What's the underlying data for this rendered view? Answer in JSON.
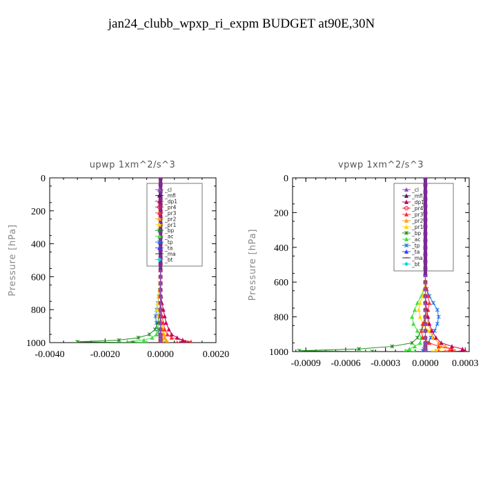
{
  "page_title": "jan24_clubb_wpxp_ri_expm  BUDGET at90E,30N",
  "chart_data": [
    {
      "type": "line",
      "title": "upwp   1xm^2/s^3",
      "ylabel": "Pressure  [hPa]",
      "xlabel": "",
      "xlim": [
        -0.004,
        0.002
      ],
      "ylim": [
        1000,
        0
      ],
      "x_ticks": [
        -0.004,
        -0.002,
        0.0,
        0.002
      ],
      "x_tick_labels": [
        "-0.0040",
        "-0.0020",
        "0.0000",
        "0.0020"
      ],
      "y_ticks": [
        0,
        200,
        400,
        600,
        800,
        1000
      ],
      "y_tick_labels": [
        "0",
        "200",
        "400",
        "600",
        "800",
        "1000"
      ],
      "grid": false,
      "legend_position": "top-right",
      "pressure_levels": [
        0,
        40,
        80,
        120,
        160,
        200,
        240,
        280,
        320,
        360,
        400,
        440,
        480,
        520,
        560,
        600,
        640,
        680,
        720,
        760,
        800,
        840,
        880,
        920,
        950,
        970,
        985,
        995,
        1000
      ],
      "series": [
        {
          "name": "_cl",
          "color": "#8a4fb5",
          "marker": "triangle",
          "values": [
            0,
            0,
            0,
            0,
            0,
            0,
            0,
            0,
            0,
            0,
            0,
            0,
            0,
            0,
            0,
            0,
            0,
            0,
            0,
            0,
            0,
            0,
            0,
            0,
            0,
            0,
            0,
            0,
            0
          ]
        },
        {
          "name": "_mfl",
          "color": "#4b1470",
          "marker": "triangle",
          "values": [
            0,
            0,
            0,
            0,
            0,
            0,
            0,
            0,
            0,
            0,
            0,
            0,
            0,
            0,
            0,
            0,
            0,
            0,
            0,
            0,
            0,
            0,
            0,
            0,
            0,
            0,
            0,
            0,
            0
          ]
        },
        {
          "name": "_dp1",
          "color": "#c4005a",
          "marker": "triangle",
          "values": [
            0,
            0,
            0,
            0,
            0,
            0,
            0,
            0,
            0,
            0,
            0,
            0,
            0,
            0,
            0,
            0,
            0,
            0,
            2e-05,
            5e-05,
            0.0001,
            0.00015,
            0.0002,
            0.0003,
            0.0004,
            0.0006,
            0.0008,
            0.0009,
            0.0007
          ]
        },
        {
          "name": "_pr4",
          "color": "#e0203a",
          "marker": "circle",
          "values": [
            0,
            0,
            0,
            0,
            0,
            0,
            0,
            0,
            0,
            0,
            0,
            0,
            0,
            0,
            0,
            0,
            0,
            0,
            0,
            0,
            0,
            0,
            0,
            0,
            0,
            0,
            0,
            0,
            0
          ]
        },
        {
          "name": "_pr3",
          "color": "#ff3030",
          "marker": "triangle",
          "values": [
            0,
            0,
            0,
            0,
            0,
            0,
            0,
            0,
            0,
            0,
            0,
            0,
            0,
            0,
            0,
            0,
            0,
            0,
            0,
            1e-05,
            3e-05,
            6e-05,
            0.0001,
            0.00015,
            0.00025,
            0.0004,
            0.0008,
            0.0011,
            0.0006
          ]
        },
        {
          "name": "_pr2",
          "color": "#ffa020",
          "marker": "triangle",
          "values": [
            0,
            0,
            0,
            0,
            0,
            0,
            0,
            0,
            0,
            0,
            0,
            0,
            0,
            0,
            0,
            0,
            0,
            0,
            0,
            0,
            1e-05,
            2e-05,
            4e-05,
            6e-05,
            0.0001,
            0.00015,
            0.0002,
            0.00025,
            0.0002
          ]
        },
        {
          "name": "_pr1",
          "color": "#ffd700",
          "marker": "triangle",
          "values": [
            0,
            0,
            0,
            0,
            0,
            0,
            0,
            0,
            0,
            0,
            0,
            0,
            0,
            0,
            0,
            0,
            -2e-05,
            -5e-05,
            -8e-05,
            -0.0001,
            -0.00012,
            -8e-05,
            3e-05,
            0.0001,
            0.00015,
            0.00012,
            8e-05,
            5e-05,
            3e-05
          ]
        },
        {
          "name": "_bp",
          "color": "#1e8c1e",
          "marker": "cross",
          "values": [
            0,
            0,
            0,
            0,
            0,
            0,
            0,
            0,
            0,
            0,
            0,
            0,
            0,
            0,
            0,
            0,
            0,
            0,
            0,
            -1e-05,
            -3e-05,
            -6e-05,
            -0.0001,
            -0.0002,
            -0.0004,
            -0.0008,
            -0.0015,
            -0.003,
            -0.001
          ]
        },
        {
          "name": "_ac",
          "color": "#40e040",
          "marker": "triangle",
          "values": [
            0,
            0,
            0,
            0,
            0,
            0,
            0,
            0,
            0,
            0,
            0,
            0,
            0,
            0,
            0,
            0,
            0,
            0,
            0,
            0,
            -1e-05,
            -2e-05,
            -4e-05,
            -8e-05,
            -0.00015,
            -0.0003,
            -0.0006,
            -0.0012,
            -0.0005
          ]
        },
        {
          "name": "_tp",
          "color": "#2070e0",
          "marker": "cross",
          "values": [
            0,
            0,
            0,
            0,
            0,
            0,
            0,
            0,
            0,
            0,
            0,
            0,
            0,
            0,
            0,
            0,
            -1e-05,
            -3e-05,
            -6e-05,
            -0.0001,
            -0.00014,
            -0.00018,
            -0.00015,
            -0.0001,
            -5e-05,
            0,
            3e-05,
            2e-05,
            1e-05
          ]
        },
        {
          "name": "_ta",
          "color": "#3040ff",
          "marker": "triangle",
          "values": [
            0,
            0,
            0,
            0,
            0,
            0,
            0,
            0,
            0,
            0,
            0,
            0,
            0,
            0,
            0,
            0,
            0,
            0,
            0,
            0,
            0,
            0,
            0,
            0,
            0,
            0,
            0,
            0,
            0
          ]
        },
        {
          "name": "_ma",
          "color": "#333333",
          "marker": "dash",
          "values": [
            0,
            0,
            0,
            0,
            0,
            0,
            0,
            0,
            0,
            0,
            0,
            0,
            0,
            0,
            0,
            0,
            0,
            0,
            0,
            0,
            0,
            0,
            0,
            0,
            0,
            0,
            0,
            0,
            0
          ]
        },
        {
          "name": "_bt",
          "color": "#00d8e8",
          "marker": "diamond",
          "values": [
            0,
            0,
            0,
            0,
            0,
            0,
            0,
            0,
            0,
            0,
            0,
            0,
            0,
            0,
            0,
            0,
            0,
            0,
            0,
            0,
            0,
            0,
            0,
            0,
            0,
            0,
            0,
            0,
            0
          ]
        }
      ]
    },
    {
      "type": "line",
      "title": "vpwp   1xm^2/s^3",
      "ylabel": "Pressure  [hPa]",
      "xlabel": "",
      "xlim": [
        -0.001,
        0.00033
      ],
      "ylim": [
        1000,
        0
      ],
      "x_ticks": [
        -0.0009,
        -0.0006,
        -0.0003,
        0.0,
        0.0003
      ],
      "x_tick_labels": [
        "-0.0009",
        "-0.0006",
        "-0.0003",
        "0.0000",
        "0.0003"
      ],
      "y_ticks": [
        0,
        200,
        400,
        600,
        800,
        1000
      ],
      "y_tick_labels": [
        "0",
        "200",
        "400",
        "600",
        "800",
        "1000"
      ],
      "grid": false,
      "legend_position": "top-right",
      "pressure_levels": [
        0,
        40,
        80,
        120,
        160,
        200,
        240,
        280,
        320,
        360,
        400,
        440,
        480,
        520,
        560,
        600,
        640,
        680,
        720,
        760,
        800,
        840,
        880,
        920,
        950,
        970,
        985,
        995,
        1000
      ],
      "series": [
        {
          "name": "_cl",
          "color": "#8a4fb5",
          "marker": "triangle",
          "values": [
            0,
            0,
            0,
            0,
            0,
            0,
            0,
            0,
            0,
            0,
            0,
            0,
            0,
            0,
            0,
            0,
            0,
            0,
            0,
            0,
            0,
            0,
            0,
            0,
            0,
            0,
            0,
            0,
            0
          ]
        },
        {
          "name": "_mfl",
          "color": "#4b1470",
          "marker": "triangle",
          "values": [
            0,
            0,
            0,
            0,
            0,
            0,
            0,
            0,
            0,
            0,
            0,
            0,
            0,
            0,
            0,
            0,
            0,
            0,
            0,
            0,
            0,
            0,
            0,
            0,
            0,
            0,
            0,
            0,
            0
          ]
        },
        {
          "name": "_dp1",
          "color": "#c4005a",
          "marker": "triangle",
          "values": [
            0,
            0,
            0,
            0,
            0,
            0,
            0,
            0,
            0,
            0,
            0,
            0,
            0,
            0,
            0,
            0,
            0,
            0,
            5e-06,
            1e-05,
            2e-05,
            3e-05,
            5e-05,
            8e-05,
            0.00012,
            0.0002,
            0.00028,
            0.0003,
            0.0002
          ]
        },
        {
          "name": "_pr4",
          "color": "#e0203a",
          "marker": "circle",
          "values": [
            0,
            0,
            0,
            0,
            0,
            0,
            0,
            0,
            0,
            0,
            0,
            0,
            0,
            0,
            0,
            0,
            0,
            0,
            0,
            0,
            0,
            0,
            0,
            0,
            0,
            0,
            0,
            0,
            0
          ]
        },
        {
          "name": "_pr3",
          "color": "#ff3030",
          "marker": "triangle",
          "values": [
            0,
            0,
            0,
            0,
            0,
            0,
            0,
            0,
            0,
            0,
            0,
            0,
            0,
            0,
            0,
            0,
            1e-05,
            2e-05,
            3e-05,
            2e-05,
            0,
            -2e-05,
            -3e-05,
            -2e-05,
            3e-05,
            0.0001,
            0.0002,
            0.00018,
            0.0001
          ]
        },
        {
          "name": "_pr2",
          "color": "#ffa020",
          "marker": "triangle",
          "values": [
            0,
            0,
            0,
            0,
            0,
            0,
            0,
            0,
            0,
            0,
            0,
            0,
            0,
            0,
            0,
            0,
            0,
            0,
            0,
            0,
            1e-05,
            2e-05,
            4e-05,
            6e-05,
            0.0001,
            0.00015,
            0.0002,
            0.00022,
            0.00015
          ]
        },
        {
          "name": "_pr1",
          "color": "#ffd700",
          "marker": "triangle",
          "values": [
            0,
            0,
            0,
            0,
            0,
            0,
            0,
            0,
            0,
            0,
            0,
            0,
            0,
            0,
            0,
            0,
            -1e-05,
            -2e-05,
            -4e-05,
            -5e-05,
            -4e-05,
            -2e-05,
            2e-05,
            6e-05,
            0.0001,
            0.00012,
            0.0001,
            8e-05,
            5e-05
          ]
        },
        {
          "name": "_bp",
          "color": "#1e8c1e",
          "marker": "cross",
          "values": [
            0,
            0,
            0,
            0,
            0,
            0,
            0,
            0,
            0,
            0,
            0,
            0,
            0,
            0,
            0,
            0,
            0,
            0,
            0,
            0,
            0,
            -1e-05,
            -3e-05,
            -6e-05,
            -0.0001,
            -0.00025,
            -0.0005,
            -0.00095,
            -0.0004
          ]
        },
        {
          "name": "_ac",
          "color": "#40e040",
          "marker": "triangle",
          "values": [
            0,
            0,
            0,
            0,
            0,
            0,
            0,
            0,
            0,
            0,
            0,
            0,
            0,
            0,
            0,
            0,
            -1e-05,
            -3e-05,
            -6e-05,
            -8e-05,
            -0.0001,
            -9e-05,
            -6e-05,
            -3e-05,
            -4e-05,
            -8e-05,
            -0.00012,
            -0.00015,
            -8e-05
          ]
        },
        {
          "name": "_tp",
          "color": "#2070e0",
          "marker": "cross",
          "values": [
            0,
            0,
            0,
            0,
            0,
            0,
            0,
            0,
            0,
            0,
            0,
            0,
            0,
            0,
            0,
            0,
            1e-05,
            3e-05,
            6e-05,
            9e-05,
            0.0001,
            9e-05,
            7e-05,
            4e-05,
            2e-05,
            0,
            -1e-05,
            -2e-05,
            -1e-05
          ]
        },
        {
          "name": "_ta",
          "color": "#3040ff",
          "marker": "triangle",
          "values": [
            0,
            0,
            0,
            0,
            0,
            0,
            0,
            0,
            0,
            0,
            0,
            0,
            0,
            0,
            0,
            0,
            0,
            0,
            0,
            0,
            0,
            0,
            0,
            0,
            0,
            0,
            0,
            0,
            0
          ]
        },
        {
          "name": "_ma",
          "color": "#333333",
          "marker": "dash",
          "values": [
            0,
            0,
            0,
            0,
            0,
            0,
            0,
            0,
            0,
            0,
            0,
            0,
            0,
            0,
            0,
            0,
            0,
            0,
            0,
            0,
            0,
            0,
            0,
            0,
            0,
            0,
            0,
            0,
            0
          ]
        },
        {
          "name": "_bt",
          "color": "#00d8e8",
          "marker": "diamond",
          "values": [
            0,
            0,
            0,
            0,
            0,
            0,
            0,
            0,
            0,
            0,
            0,
            0,
            0,
            0,
            0,
            0,
            0,
            0,
            0,
            0,
            0,
            0,
            0,
            0,
            0,
            0,
            0,
            0,
            0
          ]
        }
      ]
    }
  ]
}
